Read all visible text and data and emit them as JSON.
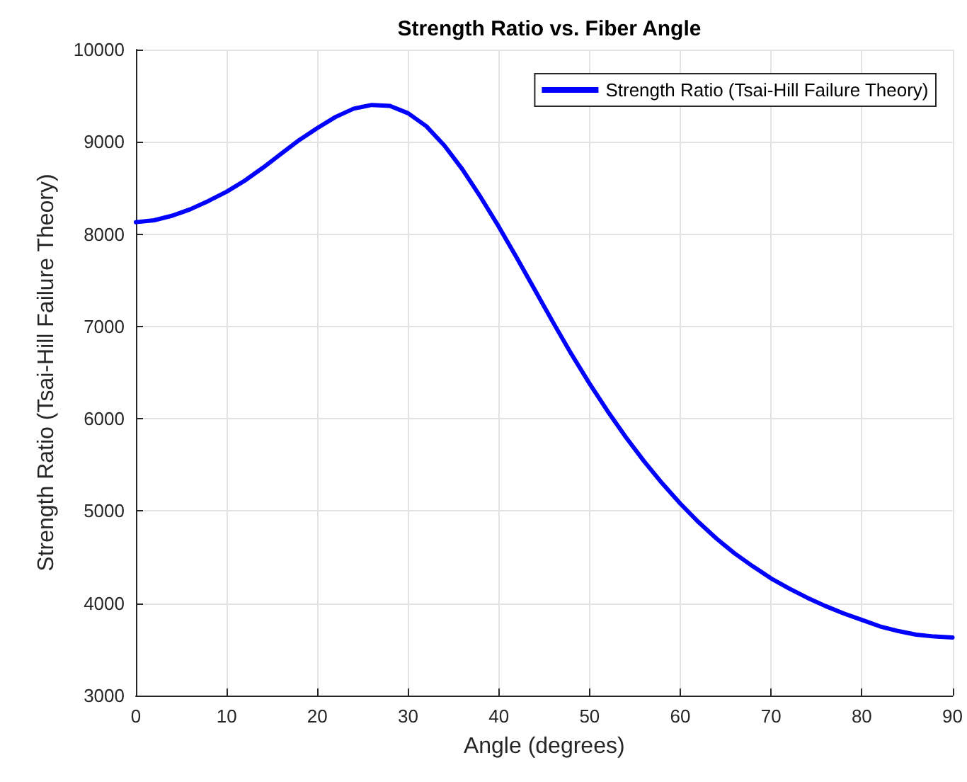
{
  "chart_data": {
    "type": "line",
    "title": "Strength Ratio vs. Fiber Angle",
    "xlabel": "Angle (degrees)",
    "ylabel": "Strength Ratio (Tsai-Hill Failure Theory)",
    "x": [
      0,
      2,
      4,
      6,
      8,
      10,
      12,
      14,
      16,
      18,
      20,
      22,
      24,
      26,
      28,
      30,
      32,
      34,
      36,
      38,
      40,
      42,
      44,
      46,
      48,
      50,
      52,
      54,
      56,
      58,
      60,
      62,
      64,
      66,
      68,
      70,
      72,
      74,
      76,
      78,
      80,
      82,
      84,
      86,
      88,
      90
    ],
    "series": [
      {
        "name": "Strength Ratio (Tsai-Hill Failure Theory)",
        "color": "#0000ff",
        "values": [
          8130,
          8150,
          8200,
          8270,
          8360,
          8460,
          8580,
          8720,
          8870,
          9020,
          9150,
          9270,
          9360,
          9400,
          9390,
          9310,
          9170,
          8960,
          8700,
          8400,
          8080,
          7740,
          7390,
          7040,
          6700,
          6380,
          6080,
          5800,
          5540,
          5300,
          5080,
          4880,
          4700,
          4540,
          4400,
          4270,
          4160,
          4060,
          3970,
          3890,
          3820,
          3750,
          3700,
          3660,
          3640,
          3630
        ]
      }
    ],
    "xlim": [
      0,
      90
    ],
    "xticks": [
      0,
      10,
      20,
      30,
      40,
      50,
      60,
      70,
      80,
      90
    ],
    "ylim": [
      3000,
      10000
    ],
    "yticks": [
      3000,
      4000,
      5000,
      6000,
      7000,
      8000,
      9000,
      10000
    ],
    "grid": true,
    "legend": "top right",
    "marker": "none",
    "line_style": "solid"
  }
}
